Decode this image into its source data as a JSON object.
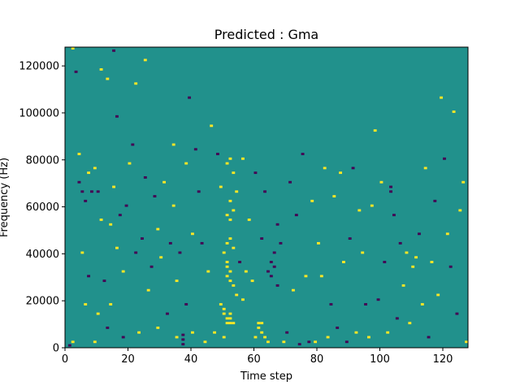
{
  "chart_data": {
    "type": "heatmap",
    "title": "Predicted : Gma",
    "xlabel": "Time step",
    "ylabel": "Frequency (Hz)",
    "xlim": [
      0,
      128
    ],
    "ylim": [
      0,
      128000
    ],
    "x_ticks": [
      0,
      20,
      40,
      60,
      80,
      100,
      120
    ],
    "y_ticks": [
      0,
      20000,
      40000,
      60000,
      80000,
      100000,
      120000
    ],
    "x_tick_labels": [
      "0",
      "20",
      "40",
      "60",
      "80",
      "100",
      "120"
    ],
    "y_tick_labels": [
      "0",
      "20000",
      "40000",
      "60000",
      "80000",
      "100000",
      "120000"
    ],
    "levels": [
      -1,
      0,
      1
    ],
    "colormap": [
      "#440154",
      "#21918c",
      "#fde725"
    ],
    "background_level": 0,
    "grid": false,
    "cells": [
      {
        "t": 1,
        "f": 0.5,
        "v": -1
      },
      {
        "t": 2,
        "f": 2,
        "v": 1
      },
      {
        "t": 2,
        "f": 127,
        "v": 1
      },
      {
        "t": 3,
        "f": 117,
        "v": -1
      },
      {
        "t": 4,
        "f": 82,
        "v": 1
      },
      {
        "t": 4,
        "f": 70,
        "v": -1
      },
      {
        "t": 5,
        "f": 66,
        "v": -1
      },
      {
        "t": 5,
        "f": 40,
        "v": 1
      },
      {
        "t": 6,
        "f": 18,
        "v": 1
      },
      {
        "t": 6,
        "f": 62,
        "v": -1
      },
      {
        "t": 7,
        "f": 74,
        "v": 1
      },
      {
        "t": 7,
        "f": 30,
        "v": -1
      },
      {
        "t": 8,
        "f": 66,
        "v": -1
      },
      {
        "t": 9,
        "f": 2,
        "v": 1
      },
      {
        "t": 9,
        "f": 76,
        "v": 1
      },
      {
        "t": 10,
        "f": 14,
        "v": 1
      },
      {
        "t": 10,
        "f": 66,
        "v": -1
      },
      {
        "t": 11,
        "f": 54,
        "v": 1
      },
      {
        "t": 11,
        "f": 118,
        "v": 1
      },
      {
        "t": 12,
        "f": 28,
        "v": -1
      },
      {
        "t": 13,
        "f": 8,
        "v": -1
      },
      {
        "t": 13,
        "f": 114,
        "v": 1
      },
      {
        "t": 14,
        "f": 18,
        "v": 1
      },
      {
        "t": 14,
        "f": 52,
        "v": 1
      },
      {
        "t": 15,
        "f": 68,
        "v": 1
      },
      {
        "t": 15,
        "f": 126,
        "v": -1
      },
      {
        "t": 16,
        "f": 42,
        "v": 1
      },
      {
        "t": 16,
        "f": 98,
        "v": -1
      },
      {
        "t": 17,
        "f": 56,
        "v": -1
      },
      {
        "t": 18,
        "f": 4,
        "v": -1
      },
      {
        "t": 18,
        "f": 32,
        "v": 1
      },
      {
        "t": 19,
        "f": 60,
        "v": -1
      },
      {
        "t": 20,
        "f": 78,
        "v": 1
      },
      {
        "t": 21,
        "f": 86,
        "v": -1
      },
      {
        "t": 22,
        "f": 40,
        "v": -1
      },
      {
        "t": 22,
        "f": 112,
        "v": 1
      },
      {
        "t": 23,
        "f": 6,
        "v": 1
      },
      {
        "t": 24,
        "f": 46,
        "v": -1
      },
      {
        "t": 25,
        "f": 72,
        "v": -1
      },
      {
        "t": 25,
        "f": 122,
        "v": 1
      },
      {
        "t": 26,
        "f": 24,
        "v": 1
      },
      {
        "t": 27,
        "f": 34,
        "v": -1
      },
      {
        "t": 28,
        "f": 64,
        "v": -1
      },
      {
        "t": 29,
        "f": 8,
        "v": 1
      },
      {
        "t": 29,
        "f": 50,
        "v": 1
      },
      {
        "t": 30,
        "f": 38,
        "v": 1
      },
      {
        "t": 31,
        "f": 70,
        "v": 1
      },
      {
        "t": 32,
        "f": 14,
        "v": -1
      },
      {
        "t": 33,
        "f": 44,
        "v": -1
      },
      {
        "t": 34,
        "f": 60,
        "v": 1
      },
      {
        "t": 34,
        "f": 86,
        "v": 1
      },
      {
        "t": 35,
        "f": 4,
        "v": 1
      },
      {
        "t": 35,
        "f": 28,
        "v": 1
      },
      {
        "t": 36,
        "f": 40,
        "v": -1
      },
      {
        "t": 37,
        "f": 1,
        "v": -1
      },
      {
        "t": 37,
        "f": 3,
        "v": -1
      },
      {
        "t": 37,
        "f": 5,
        "v": -1
      },
      {
        "t": 38,
        "f": 18,
        "v": -1
      },
      {
        "t": 38,
        "f": 78,
        "v": 1
      },
      {
        "t": 39,
        "f": 106,
        "v": -1
      },
      {
        "t": 40,
        "f": 6,
        "v": 1
      },
      {
        "t": 40,
        "f": 48,
        "v": 1
      },
      {
        "t": 41,
        "f": 84,
        "v": -1
      },
      {
        "t": 42,
        "f": 66,
        "v": -1
      },
      {
        "t": 43,
        "f": 44,
        "v": -1
      },
      {
        "t": 44,
        "f": 2,
        "v": 1
      },
      {
        "t": 45,
        "f": 32,
        "v": 1
      },
      {
        "t": 46,
        "f": 94,
        "v": 1
      },
      {
        "t": 47,
        "f": 6,
        "v": 1
      },
      {
        "t": 48,
        "f": 82,
        "v": -1
      },
      {
        "t": 49,
        "f": 68,
        "v": 1
      },
      {
        "t": 49,
        "f": 18,
        "v": 1
      },
      {
        "t": 50,
        "f": 4,
        "v": 1
      },
      {
        "t": 50,
        "f": 14,
        "v": 1
      },
      {
        "t": 50,
        "f": 16,
        "v": 1
      },
      {
        "t": 50,
        "f": 40,
        "v": 1
      },
      {
        "t": 51,
        "f": 10,
        "v": 1
      },
      {
        "t": 51,
        "f": 12,
        "v": 1
      },
      {
        "t": 51,
        "f": 30,
        "v": 1
      },
      {
        "t": 51,
        "f": 34,
        "v": 1
      },
      {
        "t": 51,
        "f": 36,
        "v": 1
      },
      {
        "t": 51,
        "f": 44,
        "v": 1
      },
      {
        "t": 51,
        "f": 56,
        "v": 1
      },
      {
        "t": 51,
        "f": 78,
        "v": 1
      },
      {
        "t": 52,
        "f": 10,
        "v": 1
      },
      {
        "t": 52,
        "f": 12,
        "v": 1
      },
      {
        "t": 52,
        "f": 14,
        "v": 1
      },
      {
        "t": 52,
        "f": 28,
        "v": 1
      },
      {
        "t": 52,
        "f": 32,
        "v": 1
      },
      {
        "t": 52,
        "f": 46,
        "v": 1
      },
      {
        "t": 52,
        "f": 54,
        "v": 1
      },
      {
        "t": 52,
        "f": 62,
        "v": 1
      },
      {
        "t": 52,
        "f": 80,
        "v": 1
      },
      {
        "t": 53,
        "f": 10,
        "v": 1
      },
      {
        "t": 53,
        "f": 26,
        "v": 1
      },
      {
        "t": 53,
        "f": 42,
        "v": 1
      },
      {
        "t": 53,
        "f": 58,
        "v": 1
      },
      {
        "t": 53,
        "f": 74,
        "v": 1
      },
      {
        "t": 54,
        "f": 22,
        "v": 1
      },
      {
        "t": 54,
        "f": 66,
        "v": 1
      },
      {
        "t": 55,
        "f": 36,
        "v": -1
      },
      {
        "t": 56,
        "f": 20,
        "v": 1
      },
      {
        "t": 56,
        "f": 80,
        "v": 1
      },
      {
        "t": 57,
        "f": 32,
        "v": 1
      },
      {
        "t": 58,
        "f": 54,
        "v": 1
      },
      {
        "t": 59,
        "f": 28,
        "v": 1
      },
      {
        "t": 60,
        "f": 4,
        "v": 1
      },
      {
        "t": 60,
        "f": 74,
        "v": -1
      },
      {
        "t": 61,
        "f": 8,
        "v": 1
      },
      {
        "t": 61,
        "f": 10,
        "v": 1
      },
      {
        "t": 62,
        "f": 6,
        "v": 1
      },
      {
        "t": 62,
        "f": 10,
        "v": 1
      },
      {
        "t": 62,
        "f": 46,
        "v": -1
      },
      {
        "t": 63,
        "f": 4,
        "v": 1
      },
      {
        "t": 63,
        "f": 66,
        "v": -1
      },
      {
        "t": 64,
        "f": 2,
        "v": 1
      },
      {
        "t": 64,
        "f": 32,
        "v": -1
      },
      {
        "t": 65,
        "f": 30,
        "v": -1
      },
      {
        "t": 65,
        "f": 36,
        "v": -1
      },
      {
        "t": 66,
        "f": 34,
        "v": -1
      },
      {
        "t": 66,
        "f": 40,
        "v": -1
      },
      {
        "t": 67,
        "f": 26,
        "v": -1
      },
      {
        "t": 67,
        "f": 52,
        "v": -1
      },
      {
        "t": 68,
        "f": 44,
        "v": -1
      },
      {
        "t": 69,
        "f": 2,
        "v": 1
      },
      {
        "t": 70,
        "f": 6,
        "v": -1
      },
      {
        "t": 71,
        "f": 70,
        "v": -1
      },
      {
        "t": 72,
        "f": 24,
        "v": 1
      },
      {
        "t": 73,
        "f": 56,
        "v": -1
      },
      {
        "t": 74,
        "f": 1,
        "v": -1
      },
      {
        "t": 75,
        "f": 82,
        "v": -1
      },
      {
        "t": 76,
        "f": 30,
        "v": 1
      },
      {
        "t": 77,
        "f": 2,
        "v": -1
      },
      {
        "t": 78,
        "f": 62,
        "v": 1
      },
      {
        "t": 79,
        "f": 2,
        "v": 1
      },
      {
        "t": 80,
        "f": 44,
        "v": 1
      },
      {
        "t": 81,
        "f": 30,
        "v": 1
      },
      {
        "t": 82,
        "f": 76,
        "v": 1
      },
      {
        "t": 83,
        "f": 4,
        "v": 1
      },
      {
        "t": 84,
        "f": 18,
        "v": -1
      },
      {
        "t": 85,
        "f": 64,
        "v": 1
      },
      {
        "t": 86,
        "f": 8,
        "v": -1
      },
      {
        "t": 87,
        "f": 74,
        "v": 1
      },
      {
        "t": 88,
        "f": 36,
        "v": 1
      },
      {
        "t": 89,
        "f": 2,
        "v": -1
      },
      {
        "t": 90,
        "f": 46,
        "v": -1
      },
      {
        "t": 91,
        "f": 76,
        "v": -1
      },
      {
        "t": 92,
        "f": 6,
        "v": 1
      },
      {
        "t": 93,
        "f": 58,
        "v": 1
      },
      {
        "t": 94,
        "f": 40,
        "v": 1
      },
      {
        "t": 95,
        "f": 18,
        "v": -1
      },
      {
        "t": 96,
        "f": 4,
        "v": 1
      },
      {
        "t": 97,
        "f": 60,
        "v": 1
      },
      {
        "t": 98,
        "f": 92,
        "v": 1
      },
      {
        "t": 99,
        "f": 20,
        "v": -1
      },
      {
        "t": 100,
        "f": 70,
        "v": 1
      },
      {
        "t": 101,
        "f": 36,
        "v": -1
      },
      {
        "t": 102,
        "f": 6,
        "v": 1
      },
      {
        "t": 103,
        "f": 66,
        "v": -1
      },
      {
        "t": 103,
        "f": 68,
        "v": -1
      },
      {
        "t": 104,
        "f": 56,
        "v": -1
      },
      {
        "t": 105,
        "f": 12,
        "v": -1
      },
      {
        "t": 106,
        "f": 44,
        "v": -1
      },
      {
        "t": 107,
        "f": 26,
        "v": 1
      },
      {
        "t": 108,
        "f": 40,
        "v": 1
      },
      {
        "t": 109,
        "f": 10,
        "v": 1
      },
      {
        "t": 110,
        "f": 34,
        "v": 1
      },
      {
        "t": 111,
        "f": 38,
        "v": 1
      },
      {
        "t": 112,
        "f": 48,
        "v": -1
      },
      {
        "t": 113,
        "f": 18,
        "v": 1
      },
      {
        "t": 114,
        "f": 76,
        "v": 1
      },
      {
        "t": 115,
        "f": 4,
        "v": -1
      },
      {
        "t": 116,
        "f": 36,
        "v": 1
      },
      {
        "t": 117,
        "f": 62,
        "v": -1
      },
      {
        "t": 118,
        "f": 22,
        "v": 1
      },
      {
        "t": 119,
        "f": 106,
        "v": 1
      },
      {
        "t": 120,
        "f": 80,
        "v": -1
      },
      {
        "t": 121,
        "f": 48,
        "v": 1
      },
      {
        "t": 122,
        "f": 34,
        "v": -1
      },
      {
        "t": 123,
        "f": 100,
        "v": 1
      },
      {
        "t": 124,
        "f": 14,
        "v": -1
      },
      {
        "t": 125,
        "f": 58,
        "v": 1
      },
      {
        "t": 126,
        "f": 70,
        "v": 1
      },
      {
        "t": 127,
        "f": 2,
        "v": 1
      }
    ]
  }
}
